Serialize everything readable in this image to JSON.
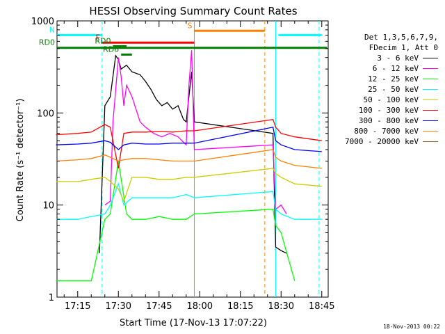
{
  "chart_data": {
    "type": "line",
    "title": "HESSI Observing Summary Count Rates",
    "xlabel": "Start Time (17-Nov-13 17:07:22)",
    "ylabel": "Count Rate (s⁻¹ detector⁻¹)",
    "y_scale": "log",
    "ylim": [
      1,
      1000
    ],
    "xlim_minutes_utc": [
      "17:07",
      "18:47"
    ],
    "x_ticks": [
      "17:15",
      "17:30",
      "17:45",
      "18:00",
      "18:15",
      "18:30",
      "18:45"
    ],
    "y_ticks": [
      "1",
      "10",
      "100",
      "1000"
    ],
    "legend": {
      "header": [
        "Det 1,3,5,6,7,9,",
        "FDecim 1, Att 0"
      ],
      "entries": [
        {
          "label": "3 - 6 keV",
          "color": "#000000"
        },
        {
          "label": "6 - 12 keV",
          "color": "#ff00ff"
        },
        {
          "label": "12 - 25 keV",
          "color": "#00ff00"
        },
        {
          "label": "25 - 50 keV",
          "color": "#00ffff"
        },
        {
          "label": "50 - 100 keV",
          "color": "#cccc00"
        },
        {
          "label": "100 - 300 keV",
          "color": "#ff0000"
        },
        {
          "label": "300 - 800 keV",
          "color": "#0000ff"
        },
        {
          "label": "800 - 7000 keV",
          "color": "#ff8000"
        },
        {
          "label": "7000 - 20000 keV",
          "color": "#996633"
        }
      ]
    },
    "flag_bars": [
      {
        "label": "N",
        "color": "#00ffff",
        "segments": [
          [
            "17:07",
            "17:24"
          ],
          [
            "18:29",
            "18:45"
          ]
        ],
        "value": 700
      },
      {
        "label": "F",
        "color": "#ff0000",
        "segments": [
          [
            "17:24",
            "17:58"
          ]
        ],
        "value": 580
      },
      {
        "label": "S",
        "color": "#ff8000",
        "segments": [
          [
            "17:58",
            "18:24"
          ]
        ],
        "value": 780
      },
      {
        "label": "RD0",
        "color": "#008000",
        "segments": [
          [
            "17:07",
            "18:47"
          ]
        ],
        "value": 510
      },
      {
        "label": "RD0",
        "color": "#008000",
        "segments": [
          [
            "17:28",
            "17:33"
          ]
        ],
        "value": 530
      },
      {
        "label": "RD6",
        "color": "#008000",
        "segments": [
          [
            "17:31",
            "17:35"
          ]
        ],
        "value": 430
      }
    ],
    "vlines": [
      {
        "time": "17:24",
        "color": "#00ffff",
        "style": "dashed"
      },
      {
        "time": "17:58",
        "color": "#ff8000",
        "style": "solid"
      },
      {
        "time": "18:24",
        "color": "#ff8000",
        "style": "dashed"
      },
      {
        "time": "18:28",
        "color": "#00ffff",
        "style": "solid"
      },
      {
        "time": "18:44",
        "color": "#00ffff",
        "style": "dashed"
      }
    ],
    "series": [
      {
        "name": "3 - 6 keV",
        "color": "#000000",
        "x": [
          "17:23",
          "17:25",
          "17:27",
          "17:29",
          "17:30",
          "17:31",
          "17:33",
          "17:35",
          "17:38",
          "17:40",
          "17:42",
          "17:44",
          "17:46",
          "17:48",
          "17:50",
          "17:52",
          "17:54",
          "17:55",
          "17:56",
          "17:57",
          "17:58",
          "18:27",
          "18:28",
          "18:30",
          "18:32"
        ],
        "y": [
          3,
          120,
          150,
          420,
          380,
          300,
          330,
          280,
          260,
          220,
          180,
          140,
          120,
          130,
          110,
          120,
          85,
          80,
          150,
          280,
          80,
          60,
          3.5,
          3.2,
          3
        ]
      },
      {
        "name": "6 - 12 keV",
        "color": "#ff00ff",
        "x": [
          "17:25",
          "17:27",
          "17:28",
          "17:30",
          "17:31",
          "17:32",
          "17:33",
          "17:35",
          "17:38",
          "17:40",
          "17:43",
          "17:46",
          "17:49",
          "17:52",
          "17:55",
          "17:56",
          "17:57",
          "17:58",
          "18:27",
          "18:28",
          "18:30",
          "18:32"
        ],
        "y": [
          10,
          11,
          80,
          400,
          250,
          120,
          200,
          150,
          80,
          70,
          60,
          55,
          60,
          55,
          45,
          200,
          480,
          40,
          45,
          9,
          10,
          8
        ]
      },
      {
        "name": "12 - 25 keV",
        "color": "#00ff00",
        "x": [
          "17:07",
          "17:20",
          "17:25",
          "17:27",
          "17:30",
          "17:33",
          "17:35",
          "17:40",
          "17:45",
          "17:50",
          "17:55",
          "17:58",
          "18:27",
          "18:28",
          "18:30",
          "18:35"
        ],
        "y": [
          1.5,
          1.5,
          7,
          8,
          30,
          8,
          7,
          7,
          7.5,
          7,
          7,
          8,
          9,
          6,
          5,
          1.5
        ]
      },
      {
        "name": "25 - 50 keV",
        "color": "#00ffff",
        "x": [
          "17:07",
          "17:15",
          "17:20",
          "17:25",
          "17:27",
          "17:30",
          "17:32",
          "17:35",
          "17:40",
          "17:45",
          "17:50",
          "17:55",
          "17:58",
          "18:27",
          "18:28",
          "18:30",
          "18:35",
          "18:45"
        ],
        "y": [
          7,
          7,
          7.5,
          8,
          10,
          17,
          10,
          12,
          12,
          12,
          12,
          13,
          12,
          14,
          9,
          8,
          7,
          7
        ]
      },
      {
        "name": "50 - 100 keV",
        "color": "#cccc00",
        "x": [
          "17:07",
          "17:15",
          "17:20",
          "17:25",
          "17:27",
          "17:30",
          "17:32",
          "17:35",
          "17:40",
          "17:45",
          "17:50",
          "17:55",
          "17:58",
          "18:27",
          "18:28",
          "18:30",
          "18:35",
          "18:45"
        ],
        "y": [
          18,
          18,
          19,
          20,
          18,
          15,
          11,
          20,
          20,
          19,
          19,
          20,
          20,
          25,
          22,
          20,
          17,
          16
        ]
      },
      {
        "name": "100 - 300 keV",
        "color": "#ff0000",
        "x": [
          "17:07",
          "17:15",
          "17:20",
          "17:25",
          "17:27",
          "17:30",
          "17:32",
          "17:35",
          "17:40",
          "17:45",
          "17:50",
          "17:55",
          "17:58",
          "18:27",
          "18:28",
          "18:30",
          "18:35",
          "18:45"
        ],
        "y": [
          58,
          60,
          62,
          75,
          70,
          25,
          60,
          62,
          62,
          63,
          62,
          64,
          64,
          85,
          70,
          60,
          55,
          50
        ]
      },
      {
        "name": "300 - 800 keV",
        "color": "#0000ff",
        "x": [
          "17:07",
          "17:15",
          "17:20",
          "17:25",
          "17:27",
          "17:30",
          "17:32",
          "17:35",
          "17:40",
          "17:45",
          "17:50",
          "17:55",
          "17:58",
          "18:27",
          "18:28",
          "18:30",
          "18:35",
          "18:45"
        ],
        "y": [
          45,
          46,
          47,
          50,
          48,
          40,
          45,
          47,
          46,
          46,
          47,
          47,
          47,
          70,
          50,
          45,
          40,
          38
        ]
      },
      {
        "name": "800 - 7000 keV",
        "color": "#ff8000",
        "x": [
          "17:07",
          "17:15",
          "17:20",
          "17:25",
          "17:27",
          "17:30",
          "17:32",
          "17:35",
          "17:40",
          "17:45",
          "17:50",
          "17:55",
          "17:58",
          "18:27",
          "18:28",
          "18:30",
          "18:35",
          "18:45"
        ],
        "y": [
          30,
          31,
          32,
          35,
          33,
          30,
          31,
          32,
          32,
          31,
          30,
          30,
          30,
          40,
          33,
          30,
          27,
          25
        ]
      }
    ]
  },
  "footer": {
    "date": "18-Nov-2013 00:22"
  }
}
